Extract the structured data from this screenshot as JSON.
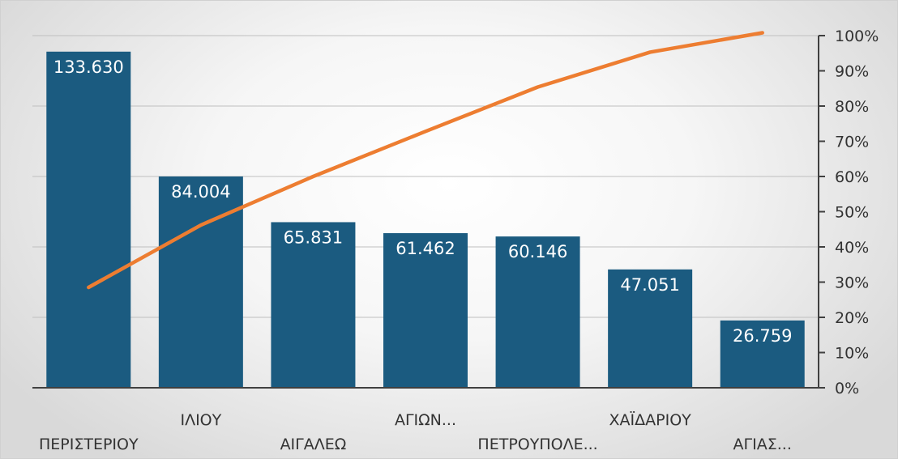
{
  "chart_data": {
    "type": "bar",
    "categories": [
      "ΠΕΡΙΣΤΕΡΙΟΥ",
      "ΙΛΙΟΥ",
      "ΑΙΓΑΛΕΩ",
      "ΑΓΙΩΝ...",
      "ΠΕΤΡΟΥΠΟΛΕ...",
      "ΧΑΪΔΑΡΙΟΥ",
      "ΑΓΙΑΣ..."
    ],
    "series": [
      {
        "type": "bar",
        "axis": "left",
        "values": [
          133630,
          84004,
          65831,
          61462,
          60146,
          47051,
          26759
        ],
        "labels": [
          "133.630",
          "84.004",
          "65.831",
          "61.462",
          "60.146",
          "47.051",
          "26.759"
        ],
        "color": "#1b5b80"
      },
      {
        "type": "line",
        "axis": "right",
        "values": [
          28.5,
          46.2,
          60.0,
          72.8,
          85.4,
          95.3,
          100.8
        ],
        "color": "#ed7d31"
      }
    ],
    "left_axis": {
      "min": 0,
      "max": 140000,
      "gridlines": 5,
      "tick_labels_shown": false
    },
    "right_axis": {
      "min": 0,
      "max": 100,
      "ticks": [
        "0%",
        "10%",
        "20%",
        "30%",
        "40%",
        "50%",
        "60%",
        "70%",
        "80%",
        "90%",
        "100%"
      ]
    },
    "grid": true,
    "legend": "none"
  },
  "colors": {
    "bar": "#1b5b80",
    "line": "#ed7d31",
    "axis": "#404040",
    "grid": "#bfbfbf"
  }
}
